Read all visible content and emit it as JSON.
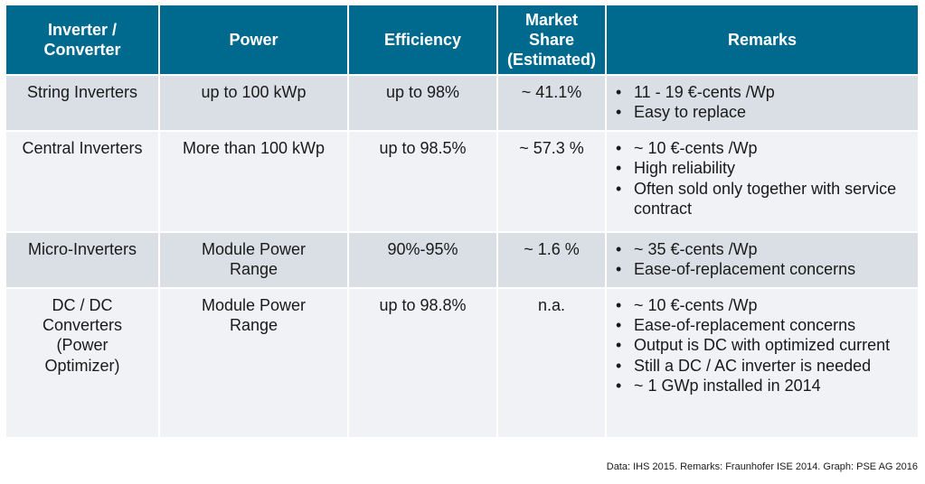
{
  "headers": [
    "Inverter / Converter",
    "Power",
    "Efficiency",
    "Market Share (Estimated)",
    "Remarks"
  ],
  "rows": [
    {
      "type": "String Inverters",
      "power": "up to 100 kWp",
      "efficiency": "up to 98%",
      "market_share": "~ 41.1%",
      "remarks": [
        "11 - 19 €-cents /Wp",
        "Easy to replace"
      ]
    },
    {
      "type": "Central Inverters",
      "power": "More than 100 kWp",
      "efficiency": "up to 98.5%",
      "market_share": "~ 57.3 %",
      "remarks": [
        "~  10 €-cents /Wp",
        "High reliability",
        "Often sold only together with service contract"
      ]
    },
    {
      "type": "Micro-Inverters",
      "power": "Module Power Range",
      "efficiency": "90%-95%",
      "market_share": "~ 1.6 %",
      "remarks": [
        "~ 35 €-cents /Wp",
        "Ease-of-replacement  concerns"
      ]
    },
    {
      "type": "DC / DC Converters (Power Optimizer)",
      "power": "Module Power Range",
      "efficiency": "up to 98.8%",
      "market_share": "n.a.",
      "remarks": [
        "~ 10 €-cents /Wp",
        "Ease-of-replacement  concerns",
        "Output is DC with optimized current",
        "Still a DC / AC inverter is needed",
        "~ 1 GWp installed in 2014"
      ]
    }
  ],
  "footer": "Data: IHS 2015. Remarks: Fraunhofer ISE 2014. Graph: PSE AG 2016",
  "bullet_glyph": "•"
}
